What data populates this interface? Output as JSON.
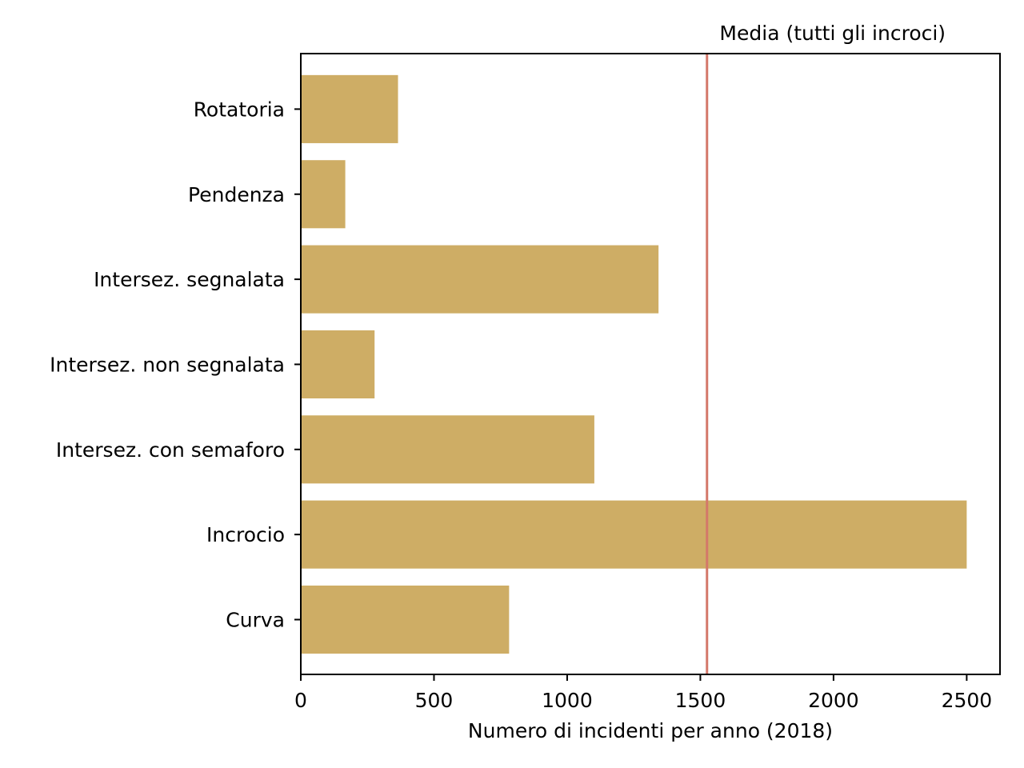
{
  "chart_data": {
    "type": "bar",
    "orientation": "horizontal",
    "categories": [
      "Curva",
      "Incrocio",
      "Intersez. con semaforo",
      "Intersez. non segnalata",
      "Intersez. segnalata",
      "Pendenza",
      "Rotatoria"
    ],
    "values": [
      782,
      2500,
      1102,
      277,
      1343,
      167,
      365
    ],
    "bar_color": "#cead65",
    "title": "",
    "xlabel": "Numero di incidenti per anno (2018)",
    "ylabel": "",
    "xlim": [
      0,
      2625
    ],
    "xticks": [
      0,
      500,
      1000,
      1500,
      2000,
      2500
    ],
    "grid": false,
    "reference_line": {
      "label": "Media (tutti gli incroci)",
      "value": 1525,
      "color": "#d4786a"
    }
  }
}
